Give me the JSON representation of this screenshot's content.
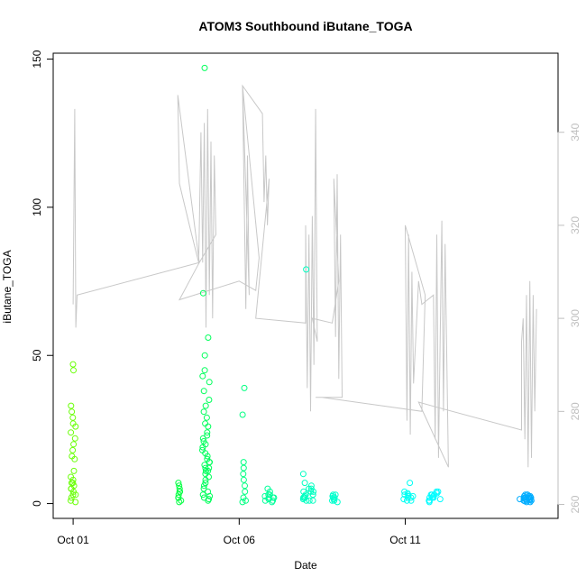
{
  "chart_data": {
    "type": "scatter",
    "title": "ATOM3 Southbound iButane_TOGA",
    "xlabel": "Date",
    "ylabel": "iButane_TOGA",
    "x_unit": "days since Oct 01",
    "xlim": [
      -0.6,
      14.6
    ],
    "ylim": [
      -5,
      152
    ],
    "y2lim": [
      257,
      357
    ],
    "x_ticks": [
      {
        "value": 0,
        "label": "Oct 01"
      },
      {
        "value": 5,
        "label": "Oct 06"
      },
      {
        "value": 10,
        "label": "Oct 11"
      }
    ],
    "y_ticks": [
      {
        "value": 0,
        "label": "0"
      },
      {
        "value": 50,
        "label": "50"
      },
      {
        "value": 100,
        "label": "100"
      },
      {
        "value": 150,
        "label": "150"
      }
    ],
    "y2_ticks": [
      {
        "value": 260,
        "label": "260"
      },
      {
        "value": 280,
        "label": "280"
      },
      {
        "value": 300,
        "label": "300"
      },
      {
        "value": 320,
        "label": "320"
      },
      {
        "value": 340,
        "label": "340"
      }
    ],
    "grid": false,
    "legend": "none",
    "series": [
      {
        "marker": "open-circle",
        "color_scale": [
          "#7FFF00",
          "#00FF40",
          "#00FFBF",
          "#00FFFF",
          "#0090FF"
        ],
        "clusters": [
          {
            "x": 0.0,
            "xspread": 0.08,
            "values": [
              47,
              45,
              33,
              31,
              29,
              27,
              24,
              22,
              20,
              18,
              16,
              15,
              11,
              9,
              8,
              7,
              6,
              5,
              4,
              3,
              2,
              1,
              0.5,
              3,
              5,
              7,
              26
            ]
          },
          {
            "x": 3.2,
            "xspread": 0.05,
            "values": [
              7,
              6,
              5,
              4,
              3,
              2,
              1,
              0.5,
              2,
              4
            ]
          },
          {
            "x": 4.0,
            "xspread": 0.12,
            "values": [
              147,
              71,
              56,
              50,
              45,
              43,
              41,
              38,
              35,
              33,
              31,
              29,
              27,
              26,
              24,
              22,
              21,
              20,
              19,
              18,
              17,
              16,
              15,
              14,
              13,
              12,
              11,
              10,
              9,
              8,
              7,
              6,
              5,
              4,
              3,
              2,
              1,
              1.5,
              2.5,
              14,
              12,
              11,
              23
            ]
          },
          {
            "x": 5.15,
            "xspread": 0.05,
            "values": [
              39,
              30,
              14,
              12,
              10,
              8,
              6,
              4,
              2,
              1,
              0.5
            ]
          },
          {
            "x": 5.9,
            "xspread": 0.15,
            "values": [
              5,
              4,
              3,
              2.5,
              2,
              1.5,
              1,
              3,
              2,
              1,
              0.5,
              2
            ]
          },
          {
            "x": 7.1,
            "xspread": 0.18,
            "values": [
              79,
              10,
              7,
              6,
              5,
              4,
              4,
              3,
              3,
              2.5,
              2,
              2,
              1.5,
              1,
              1,
              3,
              2,
              5,
              4,
              1
            ]
          },
          {
            "x": 7.9,
            "xspread": 0.1,
            "values": [
              3,
              2.5,
              2,
              1.5,
              1,
              0.5,
              3,
              2,
              1
            ]
          },
          {
            "x": 10.1,
            "xspread": 0.15,
            "values": [
              7,
              4,
              3.5,
              3,
              2.5,
              2,
              1.5,
              1,
              3,
              2,
              1,
              2.5
            ]
          },
          {
            "x": 10.9,
            "xspread": 0.2,
            "values": [
              4,
              3.5,
              3,
              2.5,
              2,
              1.5,
              1,
              0.5,
              3,
              2,
              1,
              4,
              3,
              2
            ]
          },
          {
            "x": 13.6,
            "xspread": 0.2,
            "values": [
              3,
              2.5,
              2,
              1.8,
              1.5,
              1.2,
              1,
              0.8,
              0.5,
              3,
              2.5,
              2,
              1.5,
              1,
              2,
              3,
              2.5,
              2,
              1.5,
              1,
              0.5,
              2
            ]
          }
        ]
      },
      {
        "marker": "line",
        "color": "#c8c8c8",
        "axis": "right",
        "points": [
          [
            0.0,
            303
          ],
          [
            0.05,
            345
          ],
          [
            0.08,
            298
          ],
          [
            0.12,
            305
          ],
          [
            3.8,
            312
          ],
          [
            3.15,
            348
          ],
          [
            3.2,
            329
          ],
          [
            3.5,
            320
          ],
          [
            3.78,
            312
          ],
          [
            3.85,
            340
          ],
          [
            3.9,
            312
          ],
          [
            3.95,
            342
          ],
          [
            4.0,
            298
          ],
          [
            4.05,
            345
          ],
          [
            4.1,
            305
          ],
          [
            4.15,
            338
          ],
          [
            4.2,
            300
          ],
          [
            4.25,
            335
          ],
          [
            4.3,
            318
          ],
          [
            3.8,
            312
          ],
          [
            3.2,
            304
          ],
          [
            5.0,
            308
          ],
          [
            5.5,
            306
          ],
          [
            5.6,
            313
          ],
          [
            5.1,
            350
          ],
          [
            5.2,
            302
          ],
          [
            5.25,
            335
          ],
          [
            5.3,
            305
          ],
          [
            5.1,
            350
          ],
          [
            5.7,
            344
          ],
          [
            5.75,
            325
          ],
          [
            5.8,
            335
          ],
          [
            5.85,
            320
          ],
          [
            5.9,
            330
          ],
          [
            5.5,
            300
          ],
          [
            7.0,
            299
          ],
          [
            7.0,
            320
          ],
          [
            7.05,
            285
          ],
          [
            7.1,
            318
          ],
          [
            7.15,
            280
          ],
          [
            7.2,
            322
          ],
          [
            7.25,
            290
          ],
          [
            7.3,
            345
          ],
          [
            7.35,
            295
          ],
          [
            7.2,
            300
          ],
          [
            7.8,
            299
          ],
          [
            8.0,
            308
          ],
          [
            7.85,
            330
          ],
          [
            7.9,
            296
          ],
          [
            7.95,
            331
          ],
          [
            8.0,
            287
          ],
          [
            8.05,
            318
          ],
          [
            8.1,
            283
          ],
          [
            7.3,
            283
          ],
          [
            7.5,
            283
          ],
          [
            10.5,
            280
          ],
          [
            10.6,
            305
          ],
          [
            10.0,
            320
          ],
          [
            10.05,
            278
          ],
          [
            10.1,
            318
          ],
          [
            10.15,
            275
          ],
          [
            10.2,
            310
          ],
          [
            10.25,
            286
          ],
          [
            10.4,
            308
          ],
          [
            10.5,
            303
          ],
          [
            10.85,
            305
          ],
          [
            10.9,
            274
          ],
          [
            10.95,
            318
          ],
          [
            11.0,
            270
          ],
          [
            11.1,
            321
          ],
          [
            11.15,
            280
          ],
          [
            11.2,
            316
          ],
          [
            11.3,
            268
          ],
          [
            10.4,
            282
          ],
          [
            10.9,
            281
          ],
          [
            13.5,
            276
          ],
          [
            13.5,
            295
          ],
          [
            13.55,
            300
          ],
          [
            13.6,
            274
          ],
          [
            13.65,
            305
          ],
          [
            13.7,
            268
          ],
          [
            13.75,
            308
          ],
          [
            13.8,
            270
          ],
          [
            13.85,
            305
          ],
          [
            13.9,
            280
          ],
          [
            13.95,
            302
          ]
        ]
      }
    ]
  }
}
